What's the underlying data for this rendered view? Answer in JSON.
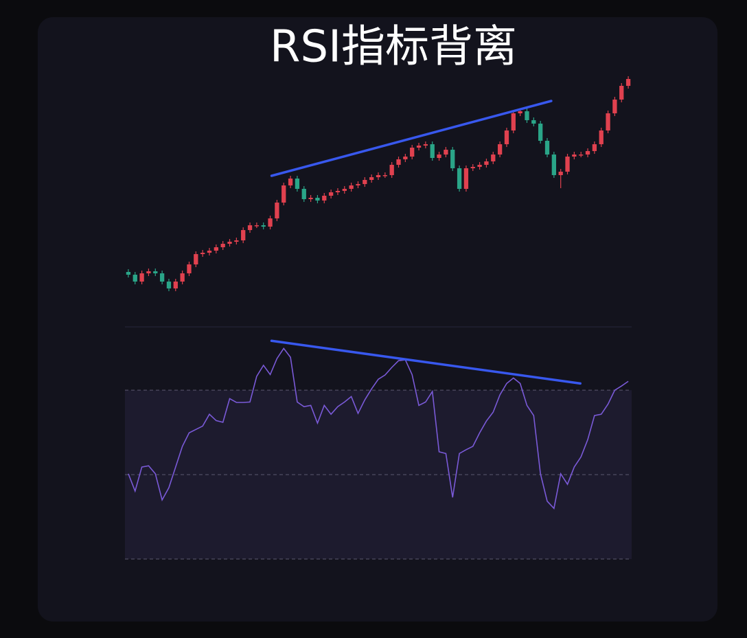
{
  "chart_data": [
    {
      "type": "candlestick",
      "title": "RSI指标背离",
      "categories": [
        null,
        null,
        null,
        null,
        null,
        null,
        null,
        null,
        null,
        null,
        null,
        null,
        null,
        null,
        null,
        null,
        null,
        null,
        null,
        null,
        null,
        null,
        null,
        null,
        null,
        null,
        null,
        null,
        null,
        null,
        null,
        null,
        null,
        null,
        null,
        null,
        null,
        null,
        null,
        null,
        null,
        null,
        null,
        null,
        null,
        null,
        null,
        null,
        null,
        null,
        null,
        null,
        null,
        null,
        null,
        null,
        null,
        null,
        null,
        null,
        null,
        null,
        null,
        null,
        null,
        null,
        null,
        null,
        null,
        null,
        null,
        null,
        null,
        null,
        null
      ],
      "open": [
        80,
        76,
        66,
        78,
        81,
        78,
        66,
        56,
        66,
        78,
        91,
        106,
        108,
        111,
        116,
        121,
        124,
        126,
        141,
        148,
        148,
        146,
        158,
        181,
        206,
        216,
        201,
        186,
        188,
        184,
        191,
        196,
        198,
        201,
        206,
        208,
        214,
        218,
        221,
        221,
        236,
        244,
        248,
        261,
        264,
        266,
        246,
        251,
        258,
        231,
        201,
        231,
        233,
        236,
        241,
        251,
        266,
        286,
        311,
        314,
        301,
        296,
        271,
        251,
        221,
        226,
        248,
        251,
        251,
        256,
        266,
        286,
        311,
        331,
        351
      ],
      "high": [
        84,
        80,
        82,
        85,
        85,
        82,
        70,
        70,
        82,
        95,
        110,
        112,
        115,
        120,
        125,
        128,
        130,
        145,
        152,
        152,
        152,
        162,
        185,
        210,
        220,
        220,
        205,
        192,
        192,
        195,
        200,
        202,
        205,
        210,
        212,
        218,
        222,
        225,
        225,
        240,
        248,
        252,
        265,
        268,
        270,
        270,
        255,
        262,
        262,
        235,
        235,
        237,
        240,
        245,
        255,
        270,
        290,
        315,
        318,
        318,
        305,
        300,
        275,
        255,
        230,
        252,
        255,
        255,
        260,
        270,
        290,
        315,
        335,
        355,
        365
      ],
      "low": [
        72,
        62,
        62,
        74,
        74,
        62,
        52,
        52,
        62,
        74,
        87,
        102,
        104,
        107,
        112,
        117,
        120,
        122,
        137,
        144,
        142,
        142,
        154,
        177,
        202,
        197,
        182,
        182,
        180,
        180,
        187,
        192,
        194,
        197,
        202,
        204,
        210,
        214,
        217,
        217,
        232,
        240,
        244,
        257,
        260,
        242,
        242,
        247,
        227,
        197,
        197,
        227,
        229,
        232,
        237,
        247,
        262,
        282,
        307,
        297,
        292,
        267,
        247,
        217,
        202,
        222,
        244,
        247,
        247,
        252,
        262,
        282,
        307,
        327,
        347
      ],
      "close": [
        76,
        66,
        78,
        81,
        78,
        66,
        56,
        66,
        78,
        91,
        106,
        108,
        111,
        116,
        121,
        124,
        126,
        141,
        148,
        148,
        146,
        158,
        181,
        206,
        216,
        201,
        186,
        188,
        184,
        191,
        196,
        198,
        201,
        206,
        208,
        214,
        218,
        221,
        221,
        236,
        244,
        248,
        261,
        264,
        266,
        246,
        251,
        258,
        231,
        201,
        231,
        233,
        236,
        241,
        251,
        266,
        286,
        311,
        314,
        301,
        296,
        271,
        251,
        221,
        226,
        248,
        251,
        251,
        256,
        266,
        286,
        311,
        331,
        351,
        361
      ],
      "up_color": "#e0414f",
      "down_color": "#2aa588",
      "ylim": [
        0,
        380
      ],
      "trendline": {
        "x": [
          21.2,
          62.6
        ],
        "values": [
          220,
          329
        ],
        "color": "#3858ee"
      }
    },
    {
      "type": "line",
      "values": [
        50.2,
        46.1,
        51.8,
        52.1,
        50.2,
        44.0,
        46.9,
        51.8,
        56.7,
        59.9,
        60.7,
        61.5,
        64.3,
        62.8,
        62.4,
        68.0,
        67.1,
        67.1,
        67.2,
        73.3,
        75.9,
        73.7,
        77.5,
        79.9,
        77.8,
        67.2,
        66.1,
        66.4,
        62.2,
        66.4,
        64.3,
        66.1,
        67.2,
        68.5,
        64.5,
        67.7,
        70.3,
        72.6,
        73.6,
        75.4,
        77.0,
        77.2,
        73.7,
        66.4,
        67.2,
        69.7,
        55.4,
        55.0,
        44.6,
        55.0,
        55.9,
        56.7,
        59.9,
        62.7,
        64.8,
        68.9,
        71.6,
        72.9,
        71.6,
        66.4,
        64.0,
        50.2,
        43.7,
        42.0,
        50.2,
        47.7,
        51.8,
        54.2,
        58.3,
        64.0,
        64.3,
        66.7,
        70.0,
        71.0,
        72.1
      ],
      "color": "#7a5ad8",
      "ylim": [
        30,
        85
      ],
      "levels": [
        30,
        50,
        70
      ],
      "trendline": {
        "x": [
          21.2,
          66.9
        ],
        "values": [
          81.7,
          71.6
        ],
        "color": "#3858ee"
      }
    }
  ]
}
